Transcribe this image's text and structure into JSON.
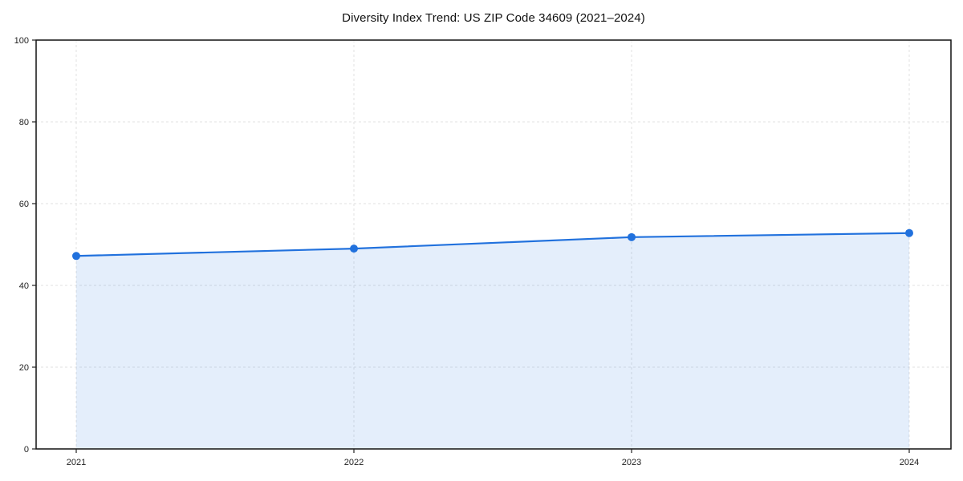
{
  "figure": {
    "title": "Diversity Index Trend: US ZIP Code 34609 (2021–2024)"
  },
  "chart_data": {
    "type": "area",
    "title": "Diversity Index Trend: US ZIP Code 34609 (2021–2024)",
    "categories": [
      "2021",
      "2022",
      "2023",
      "2024"
    ],
    "series": [
      {
        "name": "Diversity Index",
        "values": [
          47.2,
          49.0,
          51.8,
          52.8
        ]
      }
    ],
    "xlabel": "",
    "ylabel": "",
    "ylim": [
      0,
      100
    ],
    "yticks": [
      0,
      20,
      40,
      60,
      80,
      100
    ],
    "grid": true,
    "grid_style": "dashed",
    "legend_position": "none",
    "line_color": "#2171dd",
    "marker_color": "#2171dd",
    "fill_color": "#2171dd",
    "fill_opacity": 0.12,
    "grid_color": "#e2e2e2",
    "spine_color": "#111111",
    "tick_color": "#222222"
  }
}
